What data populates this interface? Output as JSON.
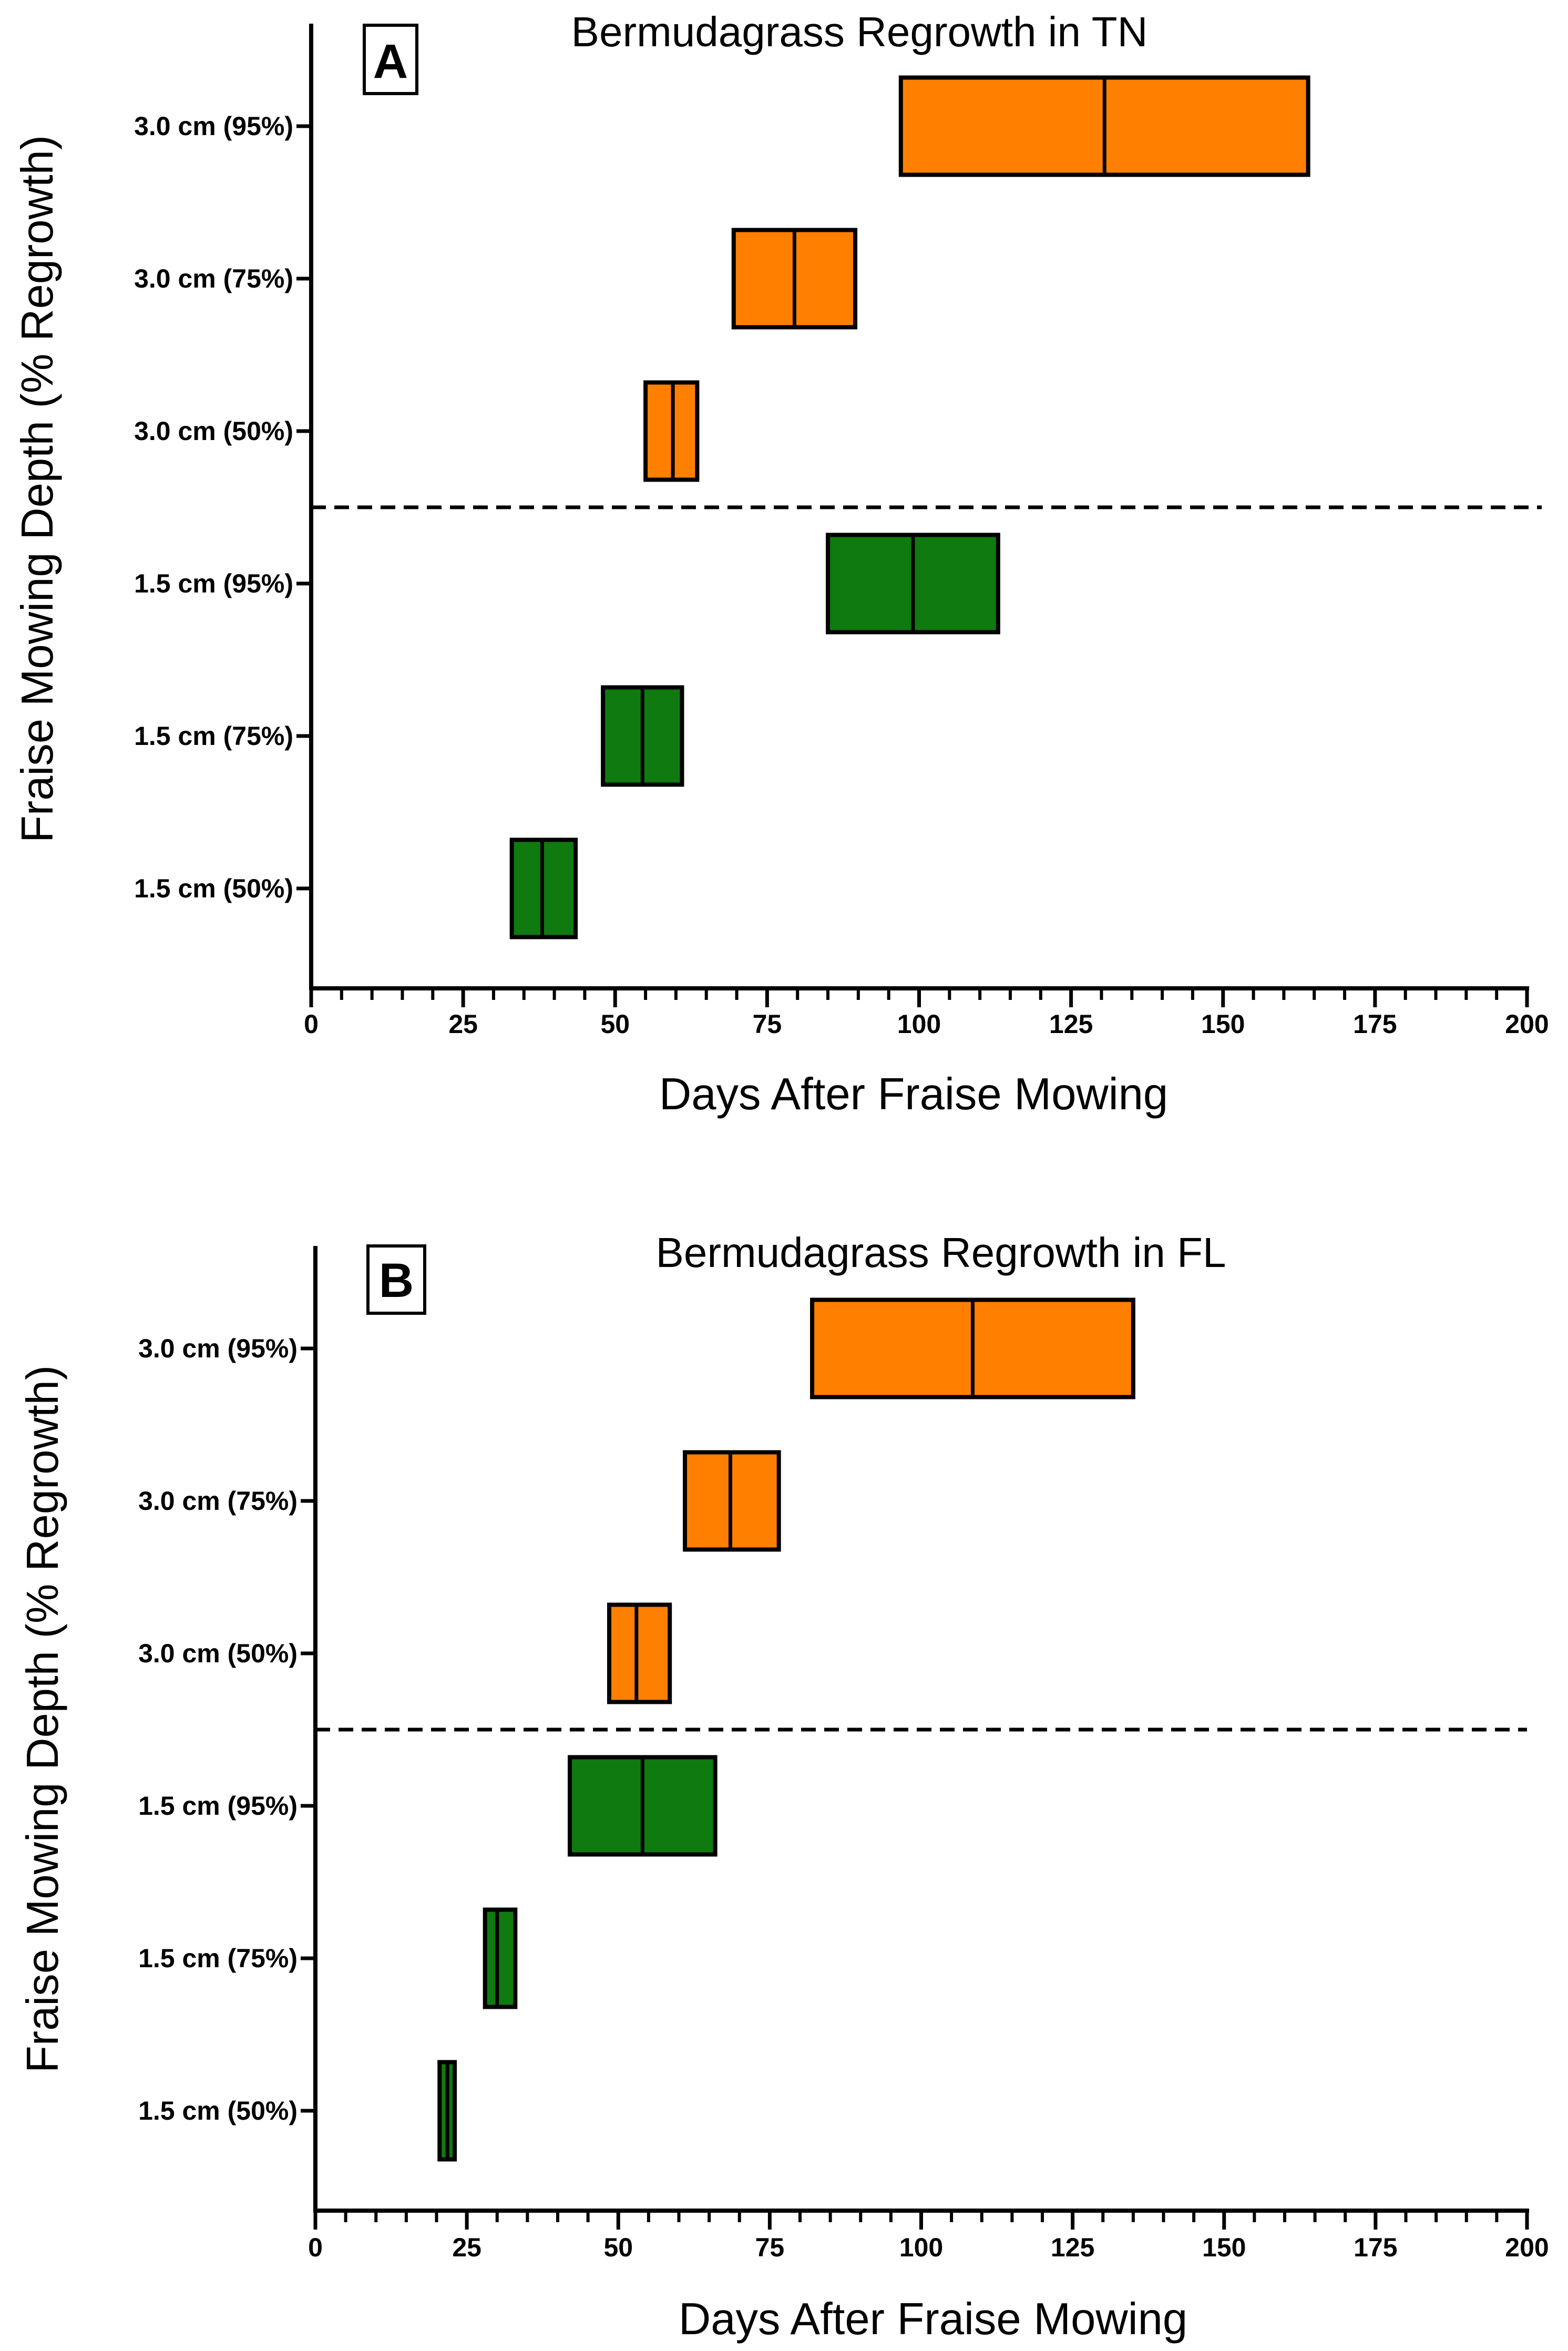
{
  "colors": {
    "orange": "#FF8000",
    "green": "#0F7A0F",
    "axis": "#000000"
  },
  "chart_data": [
    {
      "type": "floating-bar",
      "panel": "A",
      "title": "Bermudagrass Regrowth in TN",
      "xlabel": "Days After Fraise Mowing",
      "ylabel": "Fraise Mowing Depth (% Regrowth)",
      "xlim": [
        0,
        200
      ],
      "x_ticks": [
        "0",
        "25",
        "50",
        "75",
        "100",
        "125",
        "150",
        "175",
        "200"
      ],
      "categories": [
        "3.0 cm (95%)",
        "3.0 cm (75%)",
        "3.0 cm (50%)",
        "1.5 cm (95%)",
        "1.5 cm (75%)",
        "1.5 cm (50%)"
      ],
      "bars": [
        {
          "label": "3.0 cm (95%)",
          "low": 97,
          "median": 130.5,
          "high": 164,
          "color": "orange"
        },
        {
          "label": "3.0 cm (75%)",
          "low": 69.5,
          "median": 79.5,
          "high": 89.5,
          "color": "orange"
        },
        {
          "label": "3.0 cm (50%)",
          "low": 55,
          "median": 59.5,
          "high": 63.5,
          "color": "orange"
        },
        {
          "label": "1.5 cm (95%)",
          "low": 85,
          "median": 99,
          "high": 113,
          "color": "green"
        },
        {
          "label": "1.5 cm (75%)",
          "low": 48,
          "median": 54.5,
          "high": 61,
          "color": "green"
        },
        {
          "label": "1.5 cm (50%)",
          "low": 33,
          "median": 38,
          "high": 43.5,
          "color": "green"
        }
      ],
      "divider": "dashed line between 3.0 cm and 1.5 cm groups"
    },
    {
      "type": "floating-bar",
      "panel": "B",
      "title": "Bermudagrass Regrowth in FL",
      "xlabel": "Days After Fraise Mowing",
      "ylabel": "Fraise Mowing Depth (% Regrowth)",
      "xlim": [
        0,
        200
      ],
      "x_ticks": [
        "0",
        "25",
        "50",
        "75",
        "100",
        "125",
        "150",
        "175",
        "200"
      ],
      "categories": [
        "3.0 cm (95%)",
        "3.0 cm (75%)",
        "3.0 cm (50%)",
        "1.5 cm (95%)",
        "1.5 cm (75%)",
        "1.5 cm (50%)"
      ],
      "bars": [
        {
          "label": "3.0 cm (95%)",
          "low": 82,
          "median": 108.5,
          "high": 135,
          "color": "orange"
        },
        {
          "label": "3.0 cm (75%)",
          "low": 61,
          "median": 68.5,
          "high": 76.5,
          "color": "orange"
        },
        {
          "label": "3.0 cm (50%)",
          "low": 48.5,
          "median": 53,
          "high": 58.5,
          "color": "orange"
        },
        {
          "label": "1.5 cm (95%)",
          "low": 42,
          "median": 54,
          "high": 66,
          "color": "green"
        },
        {
          "label": "1.5 cm (75%)",
          "low": 28,
          "median": 30,
          "high": 33,
          "color": "green"
        },
        {
          "label": "1.5 cm (50%)",
          "low": 20.5,
          "median": 21.8,
          "high": 23,
          "color": "green"
        }
      ],
      "divider": "dashed line between 3.0 cm and 1.5 cm groups"
    }
  ]
}
